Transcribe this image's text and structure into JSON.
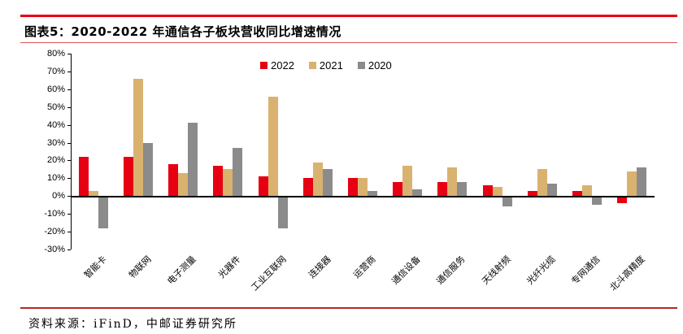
{
  "header": {
    "title": "图表5：2020-2022 年通信各子板块营收同比增速情况"
  },
  "chart_data": {
    "type": "bar",
    "title": "2020-2022 年通信各子板块营收同比增速情况",
    "categories": [
      "智能卡",
      "物联网",
      "电子测量",
      "光器件",
      "工业互联网",
      "连接器",
      "运营商",
      "通信设备",
      "通信服务",
      "天线射频",
      "光纤光缆",
      "专网通信",
      "北斗高精度"
    ],
    "series": [
      {
        "name": "2022",
        "color": "#e60012",
        "values": [
          22,
          22,
          18,
          17,
          11,
          10,
          10,
          8,
          8,
          6,
          3,
          3,
          -4
        ]
      },
      {
        "name": "2021",
        "color": "#d9b26f",
        "values": [
          3,
          66,
          13,
          15,
          56,
          19,
          10,
          17,
          16,
          5,
          15,
          6,
          14
        ]
      },
      {
        "name": "2020",
        "color": "#8b8b8b",
        "values": [
          -18,
          30,
          41,
          27,
          -18,
          15,
          3,
          4,
          8,
          -6,
          7,
          -5,
          16
        ]
      }
    ],
    "xlabel": "",
    "ylabel": "",
    "ylim": [
      -30,
      80
    ],
    "ytick_step": 10,
    "ytick_suffix": "%",
    "legend_position": "top",
    "grid": false
  },
  "footer": {
    "source": "资料来源：iFinD，中邮证券研究所"
  }
}
